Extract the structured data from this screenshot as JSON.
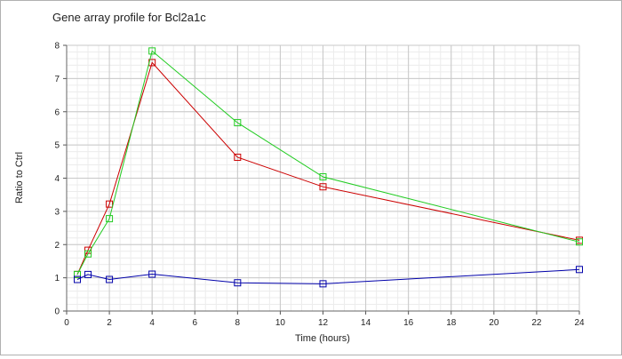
{
  "chart_data": {
    "type": "line",
    "title": "Gene array profile for Bcl2a1c",
    "xlabel": "Time (hours)",
    "ylabel": "Ratio to Ctrl",
    "xlim": [
      0,
      24
    ],
    "ylim": [
      0,
      8
    ],
    "x_ticks": [
      "0",
      "2",
      "4",
      "6",
      "8",
      "10",
      "12",
      "14",
      "16",
      "18",
      "20",
      "22",
      "24"
    ],
    "y_ticks": [
      "0",
      "1",
      "2",
      "3",
      "4",
      "5",
      "6",
      "7",
      "8"
    ],
    "grid": true,
    "x": [
      0.5,
      1,
      2,
      4,
      8,
      12,
      24
    ],
    "series": [
      {
        "color": "#cc0000",
        "marker": "open-square",
        "values": [
          1.1,
          1.83,
          3.22,
          7.48,
          4.63,
          3.74,
          2.13
        ]
      },
      {
        "color": "#22cc22",
        "marker": "open-square",
        "values": [
          1.1,
          1.72,
          2.78,
          7.83,
          5.67,
          4.04,
          2.08
        ]
      },
      {
        "color": "#0000aa",
        "marker": "open-square",
        "values": [
          0.95,
          1.1,
          0.95,
          1.11,
          0.85,
          0.82,
          1.25
        ]
      }
    ]
  }
}
